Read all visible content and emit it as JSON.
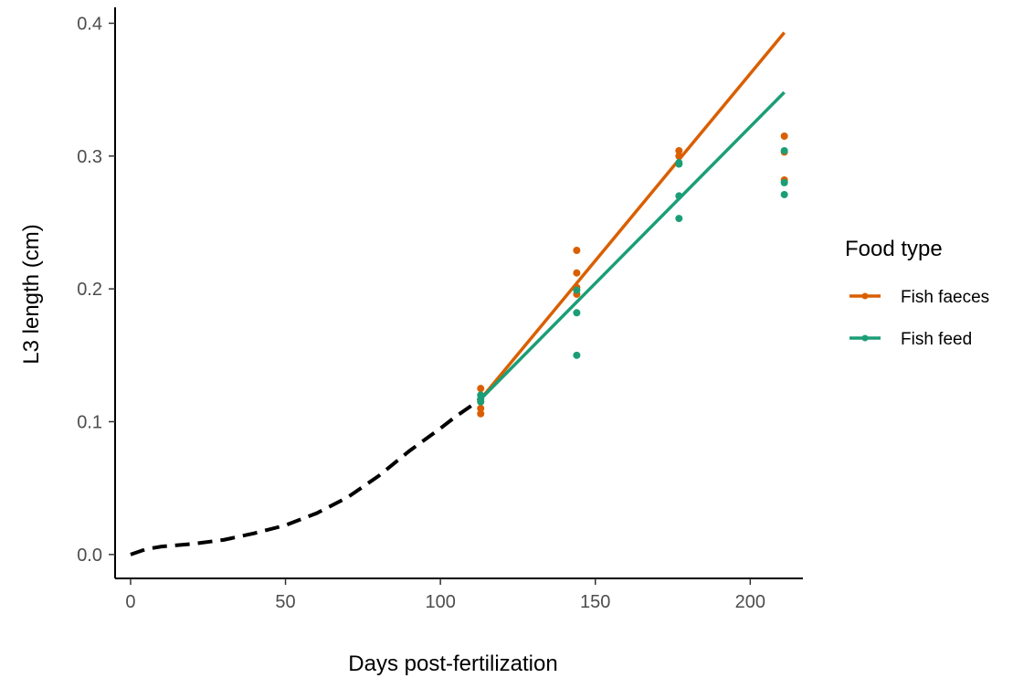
{
  "chart_data": {
    "type": "scatter",
    "xlabel": "Days post-fertilization",
    "ylabel": "L3 length (cm)",
    "xlim": [
      -5,
      217
    ],
    "ylim": [
      -0.018,
      0.412
    ],
    "x_ticks": [
      {
        "value": 0,
        "label": "0"
      },
      {
        "value": 50,
        "label": "50"
      },
      {
        "value": 100,
        "label": "100"
      },
      {
        "value": 150,
        "label": "150"
      },
      {
        "value": 200,
        "label": "200"
      }
    ],
    "y_ticks": [
      {
        "value": 0.0,
        "label": "0.0"
      },
      {
        "value": 0.1,
        "label": "0.1"
      },
      {
        "value": 0.2,
        "label": "0.2"
      },
      {
        "value": 0.3,
        "label": "0.3"
      },
      {
        "value": 0.4,
        "label": "0.4"
      }
    ],
    "grid": false,
    "legend": {
      "title": "Food type",
      "position": "right",
      "entries": [
        {
          "label": "Fish faeces",
          "color": "#D95F02"
        },
        {
          "label": "Fish feed",
          "color": "#1B9E77"
        }
      ]
    },
    "reference_curve": {
      "style": "dashed",
      "color": "#000000",
      "x": [
        0,
        5,
        10,
        20,
        30,
        40,
        50,
        60,
        70,
        80,
        90,
        100,
        105,
        110,
        113
      ],
      "y": [
        0.0,
        0.004,
        0.006,
        0.008,
        0.011,
        0.016,
        0.022,
        0.031,
        0.043,
        0.059,
        0.078,
        0.095,
        0.104,
        0.112,
        0.117
      ]
    },
    "series": [
      {
        "name": "Fish faeces",
        "color": "#D95F02",
        "points": [
          [
            113,
            0.125
          ],
          [
            113,
            0.115
          ],
          [
            113,
            0.11
          ],
          [
            113,
            0.106
          ],
          [
            144,
            0.229
          ],
          [
            144,
            0.212
          ],
          [
            144,
            0.201
          ],
          [
            144,
            0.196
          ],
          [
            177,
            0.304
          ],
          [
            177,
            0.3
          ],
          [
            211,
            0.315
          ],
          [
            211,
            0.303
          ],
          [
            211,
            0.282
          ]
        ],
        "fit": {
          "x": [
            113,
            211
          ],
          "y": [
            0.117,
            0.393
          ]
        }
      },
      {
        "name": "Fish feed",
        "color": "#1B9E77",
        "points": [
          [
            113,
            0.12
          ],
          [
            113,
            0.117
          ],
          [
            113,
            0.115
          ],
          [
            144,
            0.199
          ],
          [
            144,
            0.182
          ],
          [
            144,
            0.15
          ],
          [
            177,
            0.295
          ],
          [
            177,
            0.294
          ],
          [
            177,
            0.27
          ],
          [
            177,
            0.253
          ],
          [
            211,
            0.304
          ],
          [
            211,
            0.28
          ],
          [
            211,
            0.271
          ]
        ],
        "fit": {
          "x": [
            113,
            211
          ],
          "y": [
            0.117,
            0.348
          ]
        }
      }
    ]
  }
}
